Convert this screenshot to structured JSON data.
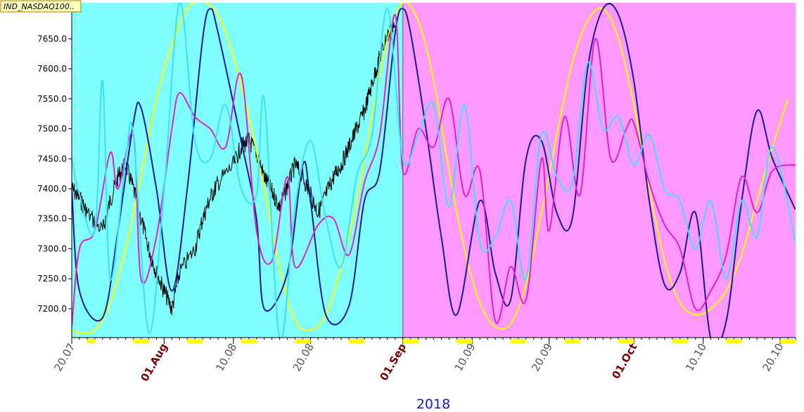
{
  "chart_data": {
    "type": "line",
    "symbol": "IND_NASDAQ100..",
    "year_label": "2018",
    "ylim": [
      7152,
      7710
    ],
    "y_ticks": [
      {
        "value": 7200,
        "label": "7200.0"
      },
      {
        "value": 7250,
        "label": "7250.0"
      },
      {
        "value": 7300,
        "label": "7300.0"
      },
      {
        "value": 7350,
        "label": "7350.0"
      },
      {
        "value": 7400,
        "label": "7400.0"
      },
      {
        "value": 7450,
        "label": "7450.0"
      },
      {
        "value": 7500,
        "label": "7500.0"
      },
      {
        "value": 7550,
        "label": "7550.0"
      },
      {
        "value": 7600,
        "label": "7600.0"
      },
      {
        "value": 7650,
        "label": "7650.0"
      },
      {
        "value": 7700,
        "label": "7700.0"
      }
    ],
    "x_domain": [
      "2018-07-20",
      "2018-10-22"
    ],
    "x_ticks": [
      {
        "date": "2018-07-20",
        "label": "20.07",
        "month": false
      },
      {
        "date": "2018-08-01",
        "label": "01.Aug",
        "month": true
      },
      {
        "date": "2018-08-10",
        "label": "10.08",
        "month": false
      },
      {
        "date": "2018-08-20",
        "label": "20.08",
        "month": false
      },
      {
        "date": "2018-09-01",
        "label": "01.Sep",
        "month": true
      },
      {
        "date": "2018-09-10",
        "label": "10.09",
        "month": false
      },
      {
        "date": "2018-09-20",
        "label": "20.09",
        "month": false
      },
      {
        "date": "2018-10-01",
        "label": "01.Oct",
        "month": true
      },
      {
        "date": "2018-10-10",
        "label": "10.10",
        "month": false
      },
      {
        "date": "2018-10-20",
        "label": "20.10",
        "month": false
      }
    ],
    "background_regions": [
      {
        "start": "2018-07-20",
        "end": "2018-09-01",
        "color": "#80ffff"
      },
      {
        "start": "2018-09-01",
        "end": "2018-10-22",
        "color": "#ff99ff"
      }
    ],
    "weekend_marker_color": "#ffff00",
    "weekend_dates": [
      "2018-07-22",
      "2018-07-28",
      "2018-07-29",
      "2018-08-04",
      "2018-08-05",
      "2018-08-11",
      "2018-08-12",
      "2018-08-18",
      "2018-08-19",
      "2018-08-25",
      "2018-08-26",
      "2018-09-01",
      "2018-09-02",
      "2018-09-08",
      "2018-09-09",
      "2018-09-15",
      "2018-09-16",
      "2018-09-22",
      "2018-09-23",
      "2018-09-29",
      "2018-09-30",
      "2018-10-06",
      "2018-10-07",
      "2018-10-13",
      "2018-10-14",
      "2018-10-20",
      "2018-10-21"
    ],
    "series": [
      {
        "color": "#000000",
        "width": 1,
        "kind": "price",
        "points": [
          [
            "2018-07-20",
            7400
          ],
          [
            "2018-07-21",
            7385
          ],
          [
            "2018-07-22",
            7360
          ],
          [
            "2018-07-24",
            7330
          ],
          [
            "2018-07-25",
            7380
          ],
          [
            "2018-07-26",
            7420
          ],
          [
            "2018-07-27",
            7440
          ],
          [
            "2018-07-28",
            7400
          ],
          [
            "2018-07-29",
            7350
          ],
          [
            "2018-07-30",
            7300
          ],
          [
            "2018-07-31",
            7260
          ],
          [
            "2018-08-01",
            7230
          ],
          [
            "2018-08-02",
            7200
          ],
          [
            "2018-08-03",
            7260
          ],
          [
            "2018-08-05",
            7300
          ],
          [
            "2018-08-06",
            7350
          ],
          [
            "2018-08-07",
            7385
          ],
          [
            "2018-08-08",
            7410
          ],
          [
            "2018-08-10",
            7440
          ],
          [
            "2018-08-11",
            7470
          ],
          [
            "2018-08-12",
            7480
          ],
          [
            "2018-08-13",
            7460
          ],
          [
            "2018-08-14",
            7420
          ],
          [
            "2018-08-15",
            7395
          ],
          [
            "2018-08-16",
            7370
          ],
          [
            "2018-08-17",
            7405
          ],
          [
            "2018-08-18",
            7440
          ],
          [
            "2018-08-19",
            7420
          ],
          [
            "2018-08-20",
            7390
          ],
          [
            "2018-08-21",
            7360
          ],
          [
            "2018-08-22",
            7390
          ],
          [
            "2018-08-23",
            7420
          ],
          [
            "2018-08-24",
            7440
          ],
          [
            "2018-08-25",
            7470
          ],
          [
            "2018-08-26",
            7500
          ],
          [
            "2018-08-27",
            7530
          ],
          [
            "2018-08-28",
            7575
          ],
          [
            "2018-08-29",
            7620
          ],
          [
            "2018-08-30",
            7655
          ],
          [
            "2018-08-31",
            7670
          ]
        ]
      },
      {
        "color": "#ffff00",
        "width": 2,
        "kind": "cycle",
        "points": [
          [
            "2018-07-20",
            7165
          ],
          [
            "2018-07-21",
            7160
          ],
          [
            "2018-07-23",
            7165
          ],
          [
            "2018-07-25",
            7210
          ],
          [
            "2018-07-27",
            7300
          ],
          [
            "2018-07-29",
            7420
          ],
          [
            "2018-07-31",
            7550
          ],
          [
            "2018-08-02",
            7640
          ],
          [
            "2018-08-04",
            7700
          ],
          [
            "2018-08-06",
            7712
          ],
          [
            "2018-08-08",
            7690
          ],
          [
            "2018-08-10",
            7620
          ],
          [
            "2018-08-12",
            7520
          ],
          [
            "2018-08-14",
            7400
          ],
          [
            "2018-08-16",
            7270
          ],
          [
            "2018-08-18",
            7180
          ],
          [
            "2018-08-20",
            7165
          ],
          [
            "2018-08-22",
            7190
          ],
          [
            "2018-08-24",
            7270
          ],
          [
            "2018-08-26",
            7380
          ],
          [
            "2018-08-28",
            7520
          ],
          [
            "2018-08-30",
            7650
          ],
          [
            "2018-09-01",
            7710
          ],
          [
            "2018-09-03",
            7680
          ],
          [
            "2018-09-05",
            7580
          ],
          [
            "2018-09-07",
            7430
          ],
          [
            "2018-09-09",
            7300
          ],
          [
            "2018-09-11",
            7210
          ],
          [
            "2018-09-13",
            7170
          ],
          [
            "2018-09-15",
            7175
          ],
          [
            "2018-09-17",
            7240
          ],
          [
            "2018-09-19",
            7360
          ],
          [
            "2018-09-21",
            7490
          ],
          [
            "2018-09-23",
            7610
          ],
          [
            "2018-09-25",
            7680
          ],
          [
            "2018-09-27",
            7700
          ],
          [
            "2018-09-29",
            7650
          ],
          [
            "2018-10-01",
            7540
          ],
          [
            "2018-10-03",
            7400
          ],
          [
            "2018-10-05",
            7280
          ],
          [
            "2018-10-07",
            7210
          ],
          [
            "2018-10-09",
            7190
          ],
          [
            "2018-10-11",
            7200
          ],
          [
            "2018-10-13",
            7230
          ],
          [
            "2018-10-15",
            7290
          ],
          [
            "2018-10-17",
            7380
          ],
          [
            "2018-10-19",
            7470
          ],
          [
            "2018-10-21",
            7550
          ]
        ]
      },
      {
        "color": "#1818a0",
        "width": 2,
        "kind": "cycle",
        "points": [
          [
            "2018-07-20",
            7400
          ],
          [
            "2018-07-21",
            7230
          ],
          [
            "2018-07-24",
            7185
          ],
          [
            "2018-07-26",
            7330
          ],
          [
            "2018-07-28",
            7510
          ],
          [
            "2018-07-29",
            7535
          ],
          [
            "2018-07-31",
            7400
          ],
          [
            "2018-08-02",
            7230
          ],
          [
            "2018-08-04",
            7400
          ],
          [
            "2018-08-06",
            7650
          ],
          [
            "2018-08-07",
            7700
          ],
          [
            "2018-08-08",
            7660
          ],
          [
            "2018-08-11",
            7480
          ],
          [
            "2018-08-13",
            7350
          ],
          [
            "2018-08-14",
            7200
          ],
          [
            "2018-08-17",
            7260
          ],
          [
            "2018-08-19",
            7440
          ],
          [
            "2018-08-20",
            7380
          ],
          [
            "2018-08-22",
            7190
          ],
          [
            "2018-08-25",
            7205
          ],
          [
            "2018-08-27",
            7380
          ],
          [
            "2018-08-29",
            7430
          ],
          [
            "2018-08-31",
            7660
          ],
          [
            "2018-09-01",
            7700
          ],
          [
            "2018-09-02",
            7660
          ],
          [
            "2018-09-04",
            7500
          ],
          [
            "2018-09-06",
            7320
          ],
          [
            "2018-09-08",
            7190
          ],
          [
            "2018-09-11",
            7380
          ],
          [
            "2018-09-13",
            7260
          ],
          [
            "2018-09-15",
            7215
          ],
          [
            "2018-09-17",
            7450
          ],
          [
            "2018-09-19",
            7480
          ],
          [
            "2018-09-21",
            7360
          ],
          [
            "2018-09-23",
            7350
          ],
          [
            "2018-09-25",
            7600
          ],
          [
            "2018-09-27",
            7700
          ],
          [
            "2018-09-29",
            7690
          ],
          [
            "2018-10-01",
            7580
          ],
          [
            "2018-10-03",
            7380
          ],
          [
            "2018-10-05",
            7240
          ],
          [
            "2018-10-07",
            7260
          ],
          [
            "2018-10-09",
            7360
          ],
          [
            "2018-10-11",
            7150
          ],
          [
            "2018-10-13",
            7180
          ],
          [
            "2018-10-15",
            7380
          ],
          [
            "2018-10-17",
            7530
          ],
          [
            "2018-10-19",
            7450
          ],
          [
            "2018-10-22",
            7365
          ]
        ]
      },
      {
        "color": "#e020d0",
        "width": 2,
        "kind": "cycle",
        "points": [
          [
            "2018-07-20",
            7170
          ],
          [
            "2018-07-21",
            7300
          ],
          [
            "2018-07-23",
            7330
          ],
          [
            "2018-07-25",
            7460
          ],
          [
            "2018-07-26",
            7400
          ],
          [
            "2018-07-28",
            7490
          ],
          [
            "2018-07-29",
            7250
          ],
          [
            "2018-07-31",
            7320
          ],
          [
            "2018-08-02",
            7500
          ],
          [
            "2018-08-03",
            7560
          ],
          [
            "2018-08-05",
            7520
          ],
          [
            "2018-08-07",
            7500
          ],
          [
            "2018-08-09",
            7470
          ],
          [
            "2018-08-11",
            7590
          ],
          [
            "2018-08-13",
            7330
          ],
          [
            "2018-08-15",
            7280
          ],
          [
            "2018-08-17",
            7420
          ],
          [
            "2018-08-18",
            7270
          ],
          [
            "2018-08-21",
            7340
          ],
          [
            "2018-08-23",
            7350
          ],
          [
            "2018-08-25",
            7290
          ],
          [
            "2018-08-27",
            7410
          ],
          [
            "2018-08-29",
            7490
          ],
          [
            "2018-08-31",
            7690
          ],
          [
            "2018-09-01",
            7430
          ],
          [
            "2018-09-03",
            7500
          ],
          [
            "2018-09-05",
            7470
          ],
          [
            "2018-09-07",
            7550
          ],
          [
            "2018-09-09",
            7390
          ],
          [
            "2018-09-11",
            7430
          ],
          [
            "2018-09-13",
            7180
          ],
          [
            "2018-09-15",
            7270
          ],
          [
            "2018-09-17",
            7215
          ],
          [
            "2018-09-19",
            7450
          ],
          [
            "2018-09-20",
            7330
          ],
          [
            "2018-09-22",
            7520
          ],
          [
            "2018-09-24",
            7390
          ],
          [
            "2018-09-26",
            7650
          ],
          [
            "2018-09-28",
            7450
          ],
          [
            "2018-09-30",
            7500
          ],
          [
            "2018-10-01",
            7510
          ],
          [
            "2018-10-03",
            7410
          ],
          [
            "2018-10-05",
            7340
          ],
          [
            "2018-10-07",
            7300
          ],
          [
            "2018-10-09",
            7200
          ],
          [
            "2018-10-11",
            7230
          ],
          [
            "2018-10-13",
            7290
          ],
          [
            "2018-10-15",
            7420
          ],
          [
            "2018-10-17",
            7360
          ],
          [
            "2018-10-19",
            7430
          ],
          [
            "2018-10-22",
            7440
          ]
        ]
      },
      {
        "color": "#40e0f0",
        "width": 2,
        "kind": "cycle",
        "points": [
          [
            "2018-07-20",
            7450
          ],
          [
            "2018-07-21",
            7390
          ],
          [
            "2018-07-23",
            7330
          ],
          [
            "2018-07-24",
            7580
          ],
          [
            "2018-07-25",
            7250
          ],
          [
            "2018-07-27",
            7450
          ],
          [
            "2018-07-28",
            7490
          ],
          [
            "2018-07-30",
            7160
          ],
          [
            "2018-08-01",
            7400
          ],
          [
            "2018-08-03",
            7710
          ],
          [
            "2018-08-05",
            7480
          ],
          [
            "2018-08-07",
            7450
          ],
          [
            "2018-08-09",
            7540
          ],
          [
            "2018-08-11",
            7400
          ],
          [
            "2018-08-13",
            7390
          ],
          [
            "2018-08-14",
            7550
          ],
          [
            "2018-08-16",
            7150
          ],
          [
            "2018-08-18",
            7370
          ],
          [
            "2018-08-20",
            7480
          ],
          [
            "2018-08-22",
            7350
          ],
          [
            "2018-08-24",
            7270
          ],
          [
            "2018-08-26",
            7420
          ],
          [
            "2018-08-28",
            7490
          ],
          [
            "2018-08-30",
            7700
          ],
          [
            "2018-09-01",
            7450
          ],
          [
            "2018-09-03",
            7490
          ],
          [
            "2018-09-05",
            7540
          ],
          [
            "2018-09-07",
            7370
          ],
          [
            "2018-09-09",
            7540
          ],
          [
            "2018-09-11",
            7310
          ],
          [
            "2018-09-13",
            7320
          ],
          [
            "2018-09-15",
            7380
          ],
          [
            "2018-09-17",
            7250
          ],
          [
            "2018-09-19",
            7490
          ],
          [
            "2018-09-21",
            7420
          ],
          [
            "2018-09-23",
            7410
          ],
          [
            "2018-09-25",
            7610
          ],
          [
            "2018-09-27",
            7500
          ],
          [
            "2018-09-29",
            7520
          ],
          [
            "2018-10-01",
            7440
          ],
          [
            "2018-10-03",
            7490
          ],
          [
            "2018-10-05",
            7400
          ],
          [
            "2018-10-07",
            7380
          ],
          [
            "2018-10-09",
            7300
          ],
          [
            "2018-10-11",
            7380
          ],
          [
            "2018-10-13",
            7250
          ],
          [
            "2018-10-15",
            7380
          ],
          [
            "2018-10-17",
            7320
          ],
          [
            "2018-10-19",
            7470
          ],
          [
            "2018-10-22",
            7310
          ]
        ]
      }
    ]
  }
}
